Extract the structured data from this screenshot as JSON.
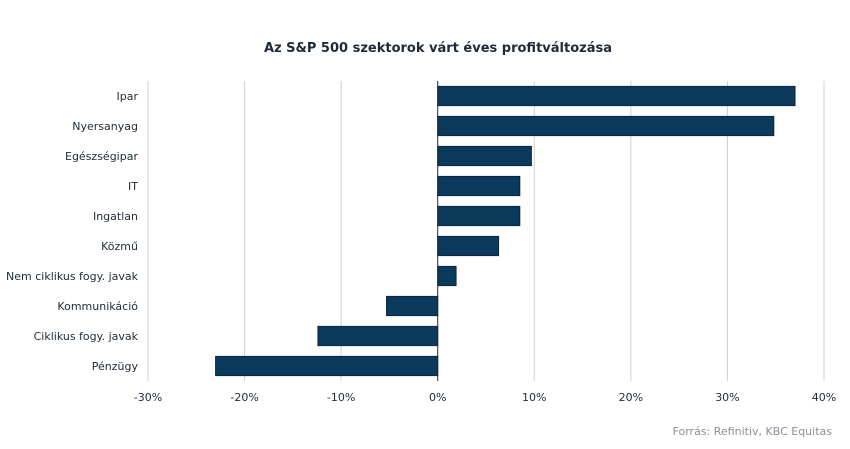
{
  "chart_data": {
    "type": "bar",
    "orientation": "horizontal",
    "title": "Az S&P 500 szektorok várt éves profitváltozása",
    "categories": [
      "Ipar",
      "Nyersanyag",
      "Egészségipar",
      "IT",
      "Ingatlan",
      "Közmű",
      "Nem ciklikus fogy. javak",
      "Kommunikáció",
      "Ciklikus fogy. javak",
      "Pénzügy"
    ],
    "values": [
      37.0,
      34.8,
      9.7,
      8.5,
      8.5,
      6.3,
      1.9,
      -5.3,
      -12.4,
      -23.0
    ],
    "xlim": [
      -30,
      40
    ],
    "ticks": [
      -30,
      -20,
      -10,
      0,
      10,
      20,
      30,
      40
    ],
    "tick_labels": [
      "-30%",
      "-20%",
      "-10%",
      "0%",
      "10%",
      "20%",
      "30%",
      "40%"
    ],
    "grid": true,
    "bar_color": "#0b3a5c"
  },
  "source": "Forrás: Refinitiv, KBC Equitas"
}
